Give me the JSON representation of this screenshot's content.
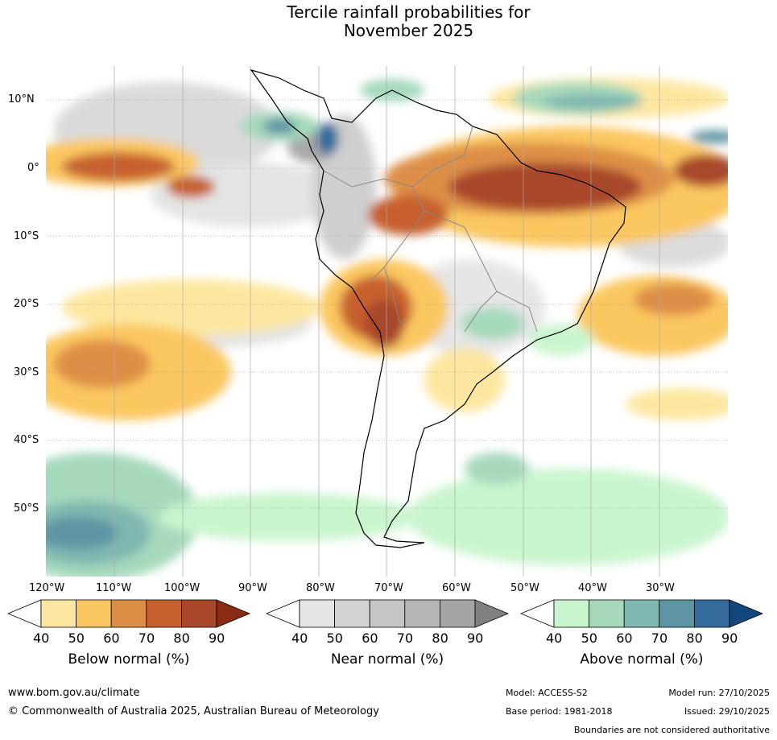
{
  "title": {
    "line1": "Tercile rainfall probabilities for",
    "line2": "November 2025"
  },
  "lat_labels": [
    "10°N",
    "0°",
    "10°S",
    "20°S",
    "30°S",
    "40°S",
    "50°S"
  ],
  "lon_labels": [
    "120°W",
    "110°W",
    "100°W",
    "90°W",
    "80°W",
    "70°W",
    "60°W",
    "50°W",
    "40°W",
    "30°W"
  ],
  "colorbars": [
    {
      "title": "Below normal (%)",
      "ticks": [
        "40",
        "50",
        "60",
        "70",
        "80",
        "90"
      ],
      "colors": [
        "#ffffff",
        "#fde7a0",
        "#fbc760",
        "#de8f47",
        "#c7612f",
        "#a9472a",
        "#8b2b14"
      ]
    },
    {
      "title": "Near normal (%)",
      "ticks": [
        "40",
        "50",
        "60",
        "70",
        "80",
        "90"
      ],
      "colors": [
        "#ffffff",
        "#e5e5e5",
        "#d4d4d4",
        "#c5c5c5",
        "#b6b6b6",
        "#a5a5a5",
        "#808080"
      ]
    },
    {
      "title": "Above normal (%)",
      "ticks": [
        "40",
        "50",
        "60",
        "70",
        "80",
        "90"
      ],
      "colors": [
        "#ffffff",
        "#c9f5ce",
        "#a6d9bc",
        "#7fb8b1",
        "#5d95a4",
        "#346a9c",
        "#13477c"
      ]
    }
  ],
  "footer": {
    "url": "www.bom.gov.au/climate",
    "copyright": "© Commonwealth of Australia 2025, Australian Bureau of Meteorology",
    "model": "Model: ACCESS-S2",
    "base_period": "Base period: 1981-2018",
    "model_run": "Model run: 27/10/2025",
    "issued": "Issued: 29/10/2025",
    "disclaimer": "Boundaries are not considered authoritative"
  }
}
